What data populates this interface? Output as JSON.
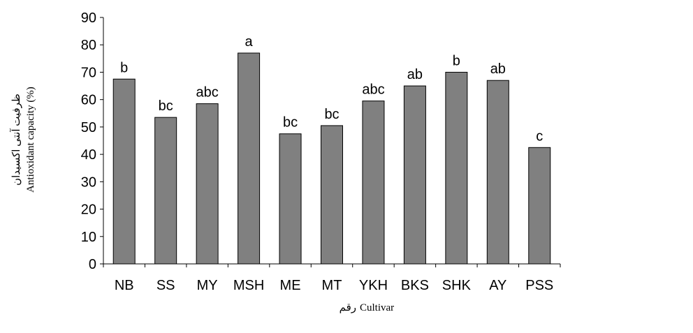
{
  "chart_data": {
    "type": "bar",
    "categories": [
      "NB",
      "SS",
      "MY",
      "MSH",
      "ME",
      "MT",
      "YKH",
      "BKS",
      "SHK",
      "AY",
      "PSS"
    ],
    "values": [
      67.5,
      53.5,
      58.5,
      77,
      47.5,
      50.5,
      59.5,
      65,
      70,
      67,
      42.5
    ],
    "significance_letters": [
      "b",
      "bc",
      "abc",
      "a",
      "bc",
      "bc",
      "abc",
      "ab",
      "b",
      "ab",
      "c"
    ],
    "yticks": [
      "0",
      "10",
      "20",
      "30",
      "40",
      "50",
      "60",
      "70",
      "80",
      "90"
    ],
    "ylim": [
      0,
      90
    ],
    "xlabel_fa": "رقم",
    "xlabel_en": "Cultivar",
    "ylabel_fa": "ظرفیت آنتی اکسیدان",
    "ylabel_en": "Antioxidant capacity (%)",
    "grid": false,
    "bar_color": "#808080"
  }
}
